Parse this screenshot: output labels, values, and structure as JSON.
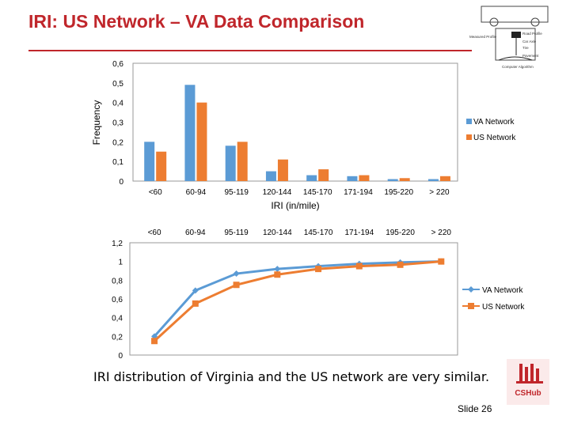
{
  "slide": {
    "title": "IRI: US Network – VA Data Comparison",
    "caption": "IRI distribution of Virginia and the US network are very similar.",
    "slide_number": "Slide 26",
    "accent_color": "#c0262b"
  },
  "logo": {
    "icon": "vehicle-profiler-diagram-icon",
    "labels": [
      "Measured Profile",
      "Road Profile",
      "Car Axle",
      "Tire",
      "Pavement",
      "Computer Algorithm"
    ]
  },
  "cshub_logo": {
    "icon": "cshub-logo-icon",
    "text": "CSHub"
  },
  "chart_data": [
    {
      "type": "bar",
      "title": "",
      "xlabel": "IRI (in/mile)",
      "ylabel": "Frequency",
      "categories": [
        "<60",
        "60-94",
        "95-119",
        "120-144",
        "145-170",
        "171-194",
        "195-220",
        "> 220"
      ],
      "series": [
        {
          "name": "VA Network",
          "color": "#5b9bd5",
          "values": [
            0.2,
            0.49,
            0.18,
            0.05,
            0.03,
            0.025,
            0.01,
            0.01
          ]
        },
        {
          "name": "US Network",
          "color": "#ed7d31",
          "values": [
            0.15,
            0.4,
            0.2,
            0.11,
            0.06,
            0.03,
            0.015,
            0.025
          ]
        }
      ],
      "yticks": [
        "0",
        "0,1",
        "0,2",
        "0,3",
        "0,4",
        "0,5",
        "0,6"
      ],
      "ylim": [
        0,
        0.6
      ],
      "legend": "right",
      "grid": false
    },
    {
      "type": "line",
      "title": "",
      "categories": [
        "<60",
        "60-94",
        "95-119",
        "120-144",
        "145-170",
        "171-194",
        "195-220",
        "> 220"
      ],
      "series": [
        {
          "name": "VA Network",
          "color": "#5b9bd5",
          "marker": "diamond",
          "values": [
            0.2,
            0.69,
            0.87,
            0.92,
            0.95,
            0.975,
            0.99,
            1.0
          ]
        },
        {
          "name": "US Network",
          "color": "#ed7d31",
          "marker": "square",
          "values": [
            0.15,
            0.55,
            0.75,
            0.86,
            0.92,
            0.95,
            0.965,
            1.0
          ]
        }
      ],
      "yticks": [
        "0",
        "0,2",
        "0,4",
        "0,6",
        "0,8",
        "1",
        "1,2"
      ],
      "ylim": [
        0,
        1.2
      ],
      "legend": "right",
      "grid": false
    }
  ]
}
